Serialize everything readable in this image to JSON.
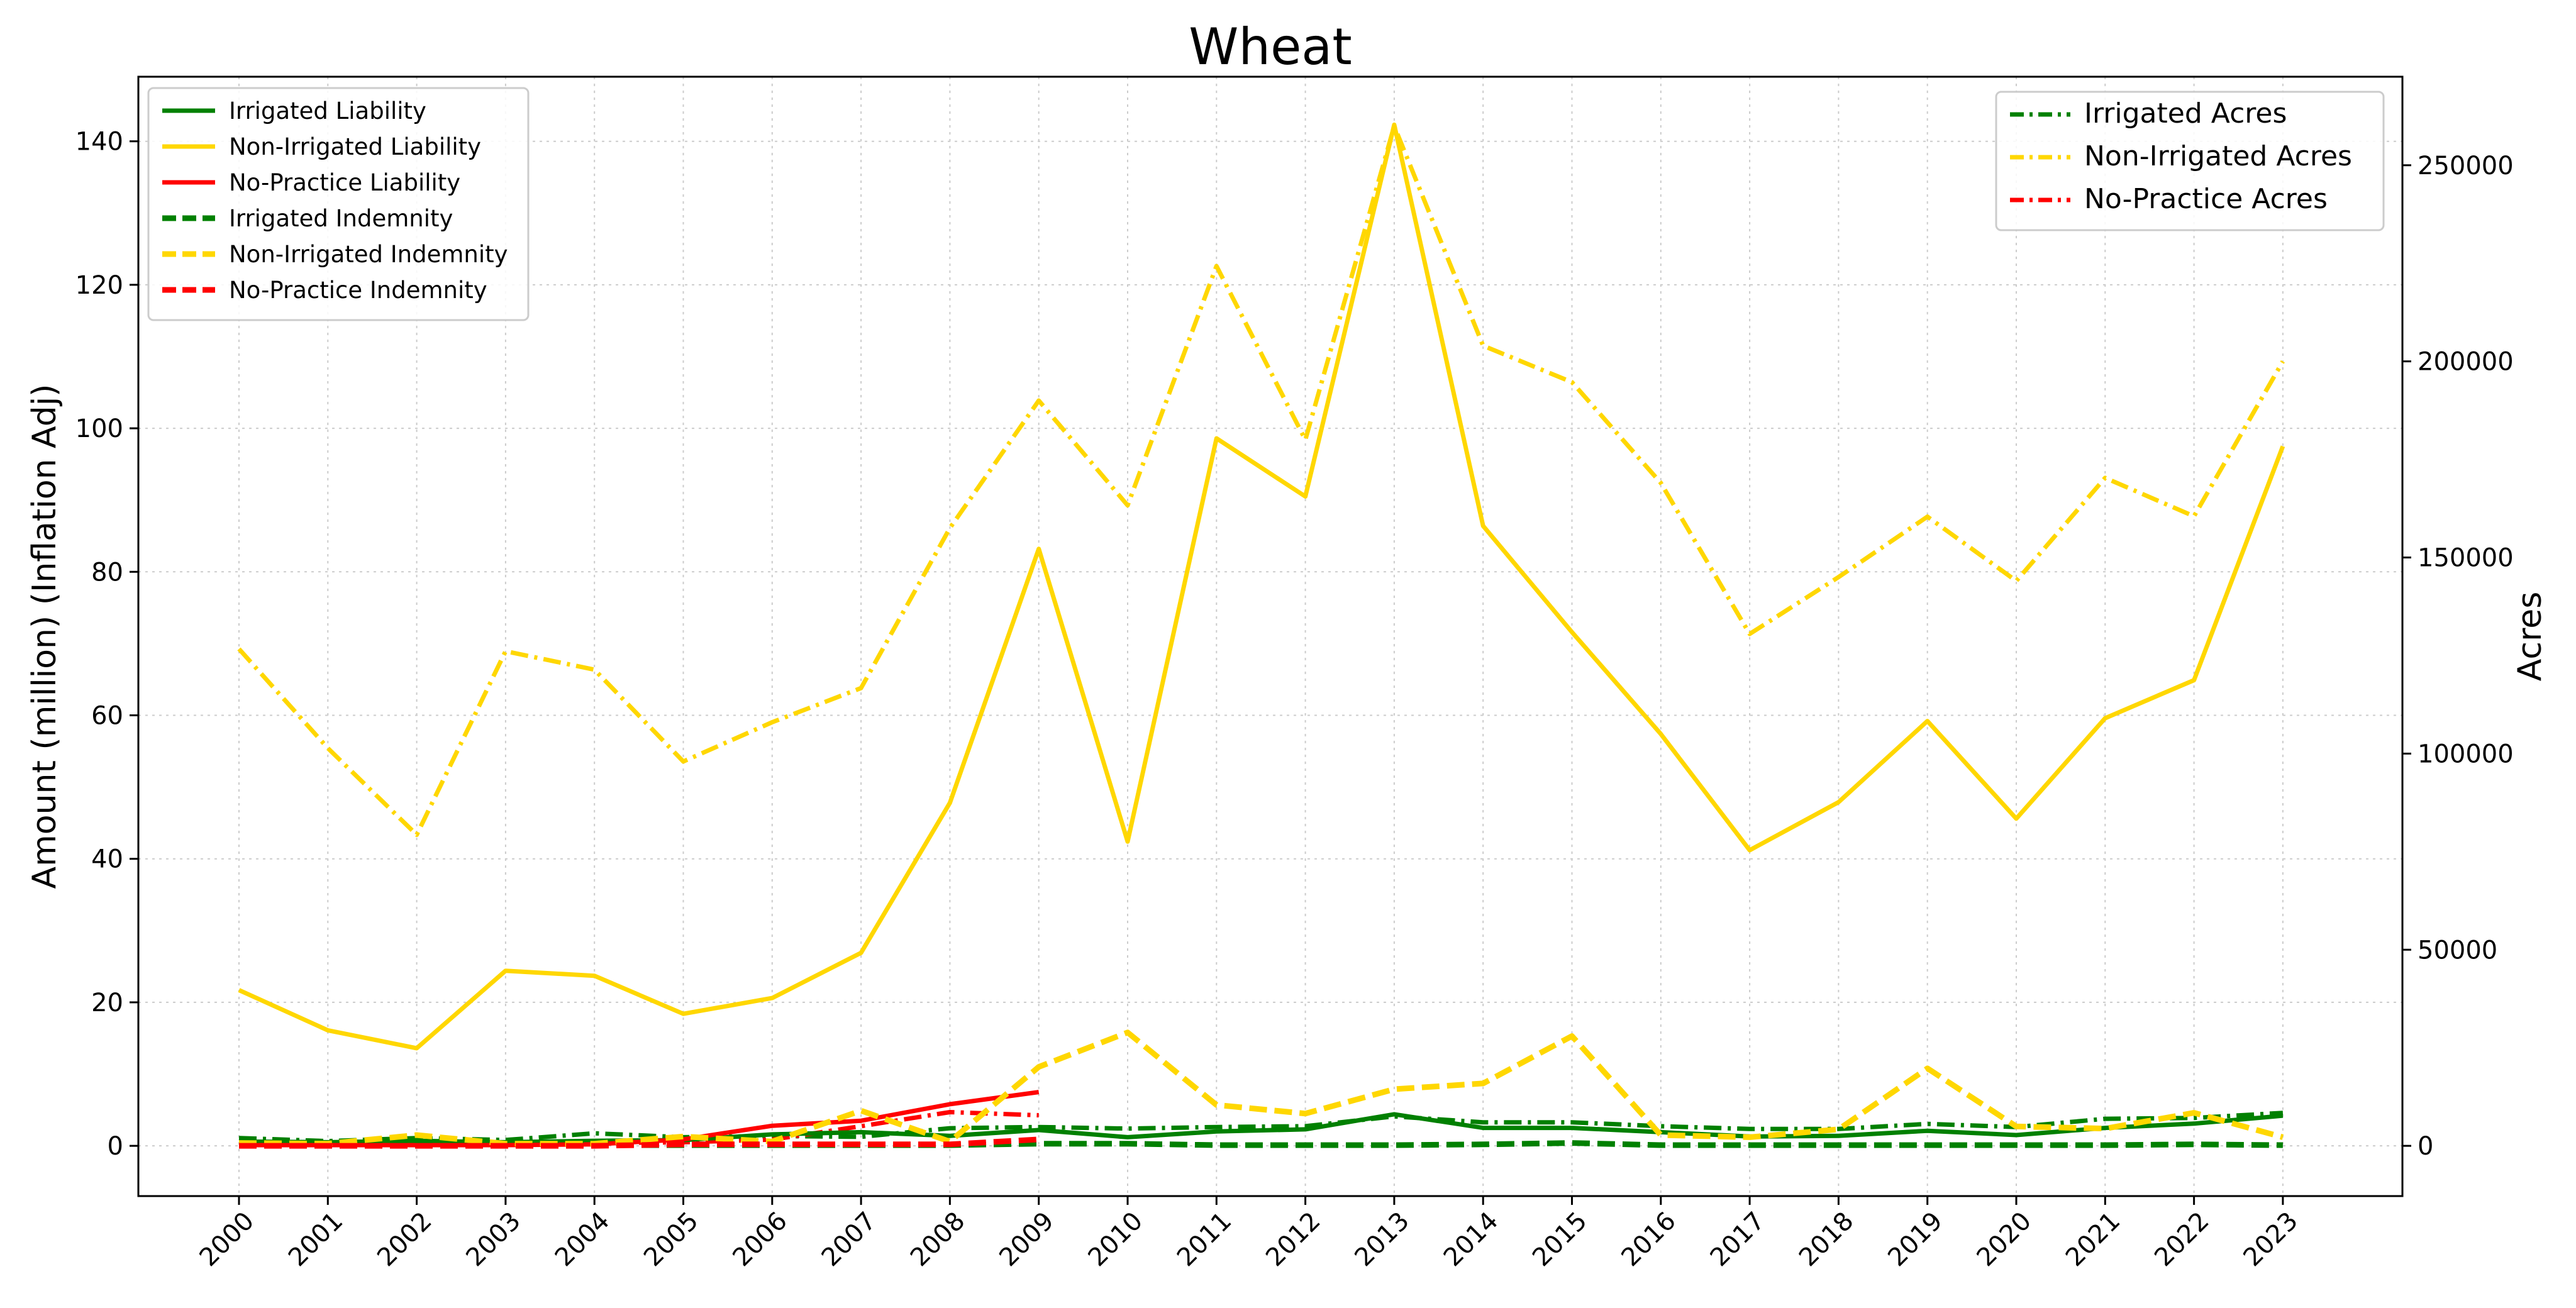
{
  "chart_data": {
    "type": "line",
    "title": "Wheat",
    "xlabel": "",
    "ylabel": "Amount (million) (Inflation Adj)",
    "y2label": "Acres",
    "x": [
      "2000",
      "2001",
      "2002",
      "2003",
      "2004",
      "2005",
      "2006",
      "2007",
      "2008",
      "2009",
      "2010",
      "2011",
      "2012",
      "2013",
      "2014",
      "2015",
      "2016",
      "2017",
      "2018",
      "2019",
      "2020",
      "2021",
      "2022",
      "2023"
    ],
    "ylim": [
      -7,
      149
    ],
    "yticks": [
      0,
      20,
      40,
      60,
      80,
      100,
      120,
      140
    ],
    "y2lim": [
      -12805,
      272570
    ],
    "y2ticks": [
      0,
      50000,
      100000,
      150000,
      200000,
      250000
    ],
    "grid": true,
    "legend_left_placement": "upper left",
    "legend_right_placement": "upper right",
    "colors": {
      "irrigated": "#008000",
      "non_irrigated": "#FFD700",
      "no_practice": "#FF0000"
    },
    "series": [
      {
        "name": "Irrigated Liability",
        "axis": "left",
        "style": "solid",
        "color": "#008000",
        "values": [
          0.6,
          0.5,
          0.7,
          0.5,
          0.7,
          0.8,
          1.6,
          1.9,
          1.4,
          2.2,
          1.2,
          2.0,
          2.3,
          4.4,
          2.5,
          2.5,
          1.9,
          1.3,
          1.4,
          2.1,
          1.5,
          2.5,
          3.1,
          4.2
        ]
      },
      {
        "name": "Non-Irrigated Liability",
        "axis": "left",
        "style": "solid",
        "color": "#FFD700",
        "values": [
          21.7,
          16.1,
          13.6,
          24.4,
          23.7,
          18.4,
          20.6,
          26.9,
          47.8,
          83.2,
          42.4,
          98.6,
          90.5,
          142.3,
          86.4,
          71.6,
          57.4,
          41.2,
          47.9,
          59.2,
          45.6,
          59.6,
          64.9,
          97.5
        ]
      },
      {
        "name": "No-Practice Liability",
        "axis": "left",
        "style": "solid",
        "color": "#FF0000",
        "values": [
          0.1,
          0.1,
          0.1,
          0.1,
          0.2,
          0.9,
          2.8,
          3.5,
          5.8,
          7.5,
          null,
          null,
          null,
          null,
          null,
          null,
          null,
          null,
          null,
          null,
          null,
          null,
          null,
          null
        ]
      },
      {
        "name": "Irrigated Indemnity",
        "axis": "left",
        "style": "dashed",
        "color": "#008000",
        "values": [
          0.3,
          0.2,
          0.2,
          0.1,
          0.1,
          0.1,
          0.1,
          0.1,
          0.1,
          0.3,
          0.3,
          0.1,
          0.1,
          0.1,
          0.2,
          0.4,
          0.1,
          0.1,
          0.1,
          0.1,
          0.1,
          0.1,
          0.2,
          0.1
        ]
      },
      {
        "name": "Non-Irrigated Indemnity",
        "axis": "left",
        "style": "dashed",
        "color": "#FFD700",
        "values": [
          0.4,
          0.3,
          1.5,
          0.3,
          0.3,
          1.3,
          0.6,
          4.9,
          0.6,
          11.0,
          15.8,
          5.7,
          4.5,
          7.9,
          8.7,
          15.3,
          1.5,
          1.2,
          2.3,
          10.8,
          2.7,
          2.4,
          4.6,
          1.2
        ]
      },
      {
        "name": "No-Practice Indemnity",
        "axis": "left",
        "style": "dashed",
        "color": "#FF0000",
        "values": [
          0.0,
          0.0,
          0.0,
          0.0,
          0.0,
          0.2,
          0.2,
          0.2,
          0.2,
          0.9,
          null,
          null,
          null,
          null,
          null,
          null,
          null,
          null,
          null,
          null,
          null,
          null,
          null,
          null
        ]
      },
      {
        "name": "Irrigated Acres",
        "axis": "right",
        "style": "dashdot",
        "color": "#008000",
        "values": [
          2000,
          1200,
          2000,
          1500,
          3200,
          2200,
          2500,
          2300,
          4500,
          4800,
          4400,
          4800,
          5000,
          7500,
          6000,
          6000,
          5000,
          4300,
          4300,
          5600,
          4800,
          6900,
          7100,
          8400
        ]
      },
      {
        "name": "Non-Irrigated Acres",
        "axis": "right",
        "style": "dashdot",
        "color": "#FFD700",
        "values": [
          126700,
          101400,
          79300,
          126100,
          121400,
          98000,
          108000,
          116700,
          157500,
          190000,
          163300,
          224300,
          180000,
          260000,
          204000,
          194700,
          169000,
          130500,
          145000,
          160400,
          144000,
          170300,
          160500,
          200000
        ]
      },
      {
        "name": "No-Practice Acres",
        "axis": "right",
        "style": "dashdot",
        "color": "#FF0000",
        "values": [
          500,
          500,
          500,
          600,
          700,
          900,
          1600,
          5000,
          8600,
          7800,
          null,
          null,
          null,
          null,
          null,
          null,
          null,
          null,
          null,
          null,
          null,
          null,
          null,
          null
        ]
      }
    ]
  }
}
